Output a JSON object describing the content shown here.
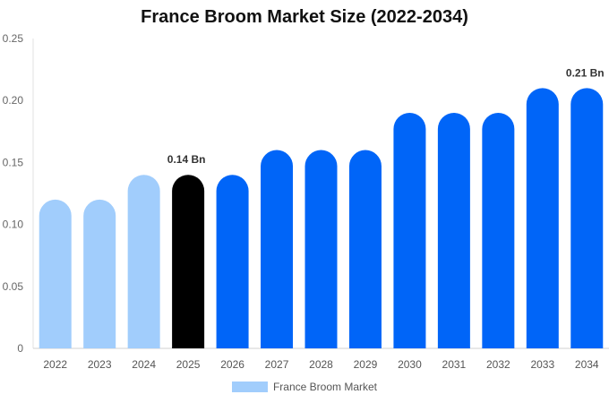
{
  "chart_data": {
    "type": "bar",
    "title": "France Broom Market Size (2022-2034)",
    "categories": [
      "2022",
      "2023",
      "2024",
      "2025",
      "2026",
      "2027",
      "2028",
      "2029",
      "2030",
      "2031",
      "2032",
      "2033",
      "2034"
    ],
    "series": [
      {
        "name": "France Broom Market",
        "values": [
          0.12,
          0.12,
          0.14,
          0.14,
          0.14,
          0.16,
          0.16,
          0.16,
          0.19,
          0.19,
          0.19,
          0.21,
          0.21
        ]
      }
    ],
    "bar_colors": [
      "#a1cdfc",
      "#a1cdfc",
      "#a1cdfc",
      "#000000",
      "#0065f8",
      "#0065f8",
      "#0065f8",
      "#0065f8",
      "#0065f8",
      "#0065f8",
      "#0065f8",
      "#0065f8",
      "#0065f8"
    ],
    "ylim": [
      0,
      0.25
    ],
    "yticks": [
      "0",
      "0.05",
      "0.10",
      "0.15",
      "0.20",
      "0.25"
    ],
    "ytick_values": [
      0,
      0.05,
      0.1,
      0.15,
      0.2,
      0.25
    ],
    "annotations": [
      {
        "category": "2025",
        "text": "0.14 Bn"
      },
      {
        "category": "2034",
        "text": "0.21 Bn"
      }
    ],
    "grid": false,
    "legend_position": "bottom-center",
    "legend_color": "#a1cdfc",
    "xlabel": "",
    "ylabel": ""
  }
}
